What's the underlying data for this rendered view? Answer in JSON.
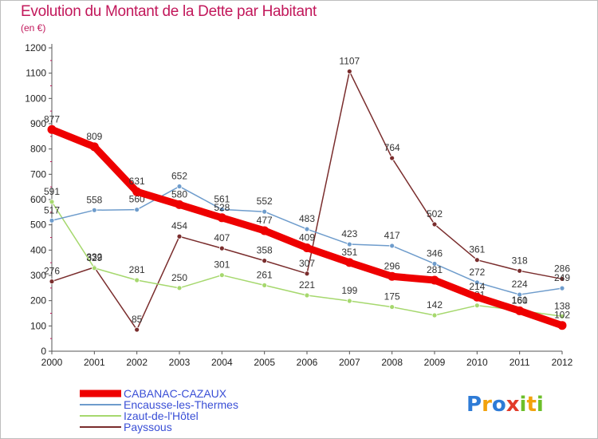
{
  "title": "Evolution du Montant de la Dette par Habitant",
  "subtitle": "(en €)",
  "logo": {
    "parts": [
      {
        "text": "P",
        "color": "#2e7bd6"
      },
      {
        "text": "r",
        "color": "#f2a20c"
      },
      {
        "text": "o",
        "color": "#2e7bd6"
      },
      {
        "text": "x",
        "color": "#e23b2a"
      },
      {
        "text": "i",
        "color": "#6cbf2a"
      },
      {
        "text": "t",
        "color": "#f2a20c"
      },
      {
        "text": "i",
        "color": "#6cbf2a"
      }
    ]
  },
  "chart_data": {
    "type": "line",
    "title": "Evolution du Montant de la Dette par Habitant",
    "subtitle": "(en €)",
    "x": [
      2000,
      2001,
      2002,
      2003,
      2004,
      2005,
      2006,
      2007,
      2008,
      2009,
      2010,
      2011,
      2012
    ],
    "ylim": [
      0,
      1200
    ],
    "yticks": [
      0,
      100,
      200,
      300,
      400,
      500,
      600,
      700,
      800,
      900,
      1000,
      1100,
      1200
    ],
    "grid": false,
    "legend": "bottom-left",
    "series": [
      {
        "name": "CABANAC-CAZAUX",
        "color": "#ee0000",
        "values": [
          877,
          809,
          631,
          580,
          528,
          477,
          409,
          351,
          296,
          281,
          214,
          160,
          102
        ]
      },
      {
        "name": "Encausse-les-Thermes",
        "color": "#6e9ccc",
        "values": [
          517,
          558,
          560,
          652,
          561,
          552,
          483,
          423,
          417,
          346,
          272,
          224,
          249
        ]
      },
      {
        "name": "Izaut-de-l'Hôtel",
        "color": "#a6d86e",
        "values": [
          591,
          329,
          281,
          250,
          301,
          261,
          221,
          199,
          175,
          142,
          181,
          161,
          138
        ]
      },
      {
        "name": "Payssous",
        "color": "#7a2d2d",
        "values": [
          276,
          332,
          85,
          454,
          407,
          358,
          307,
          1107,
          764,
          502,
          361,
          318,
          286
        ]
      }
    ]
  }
}
